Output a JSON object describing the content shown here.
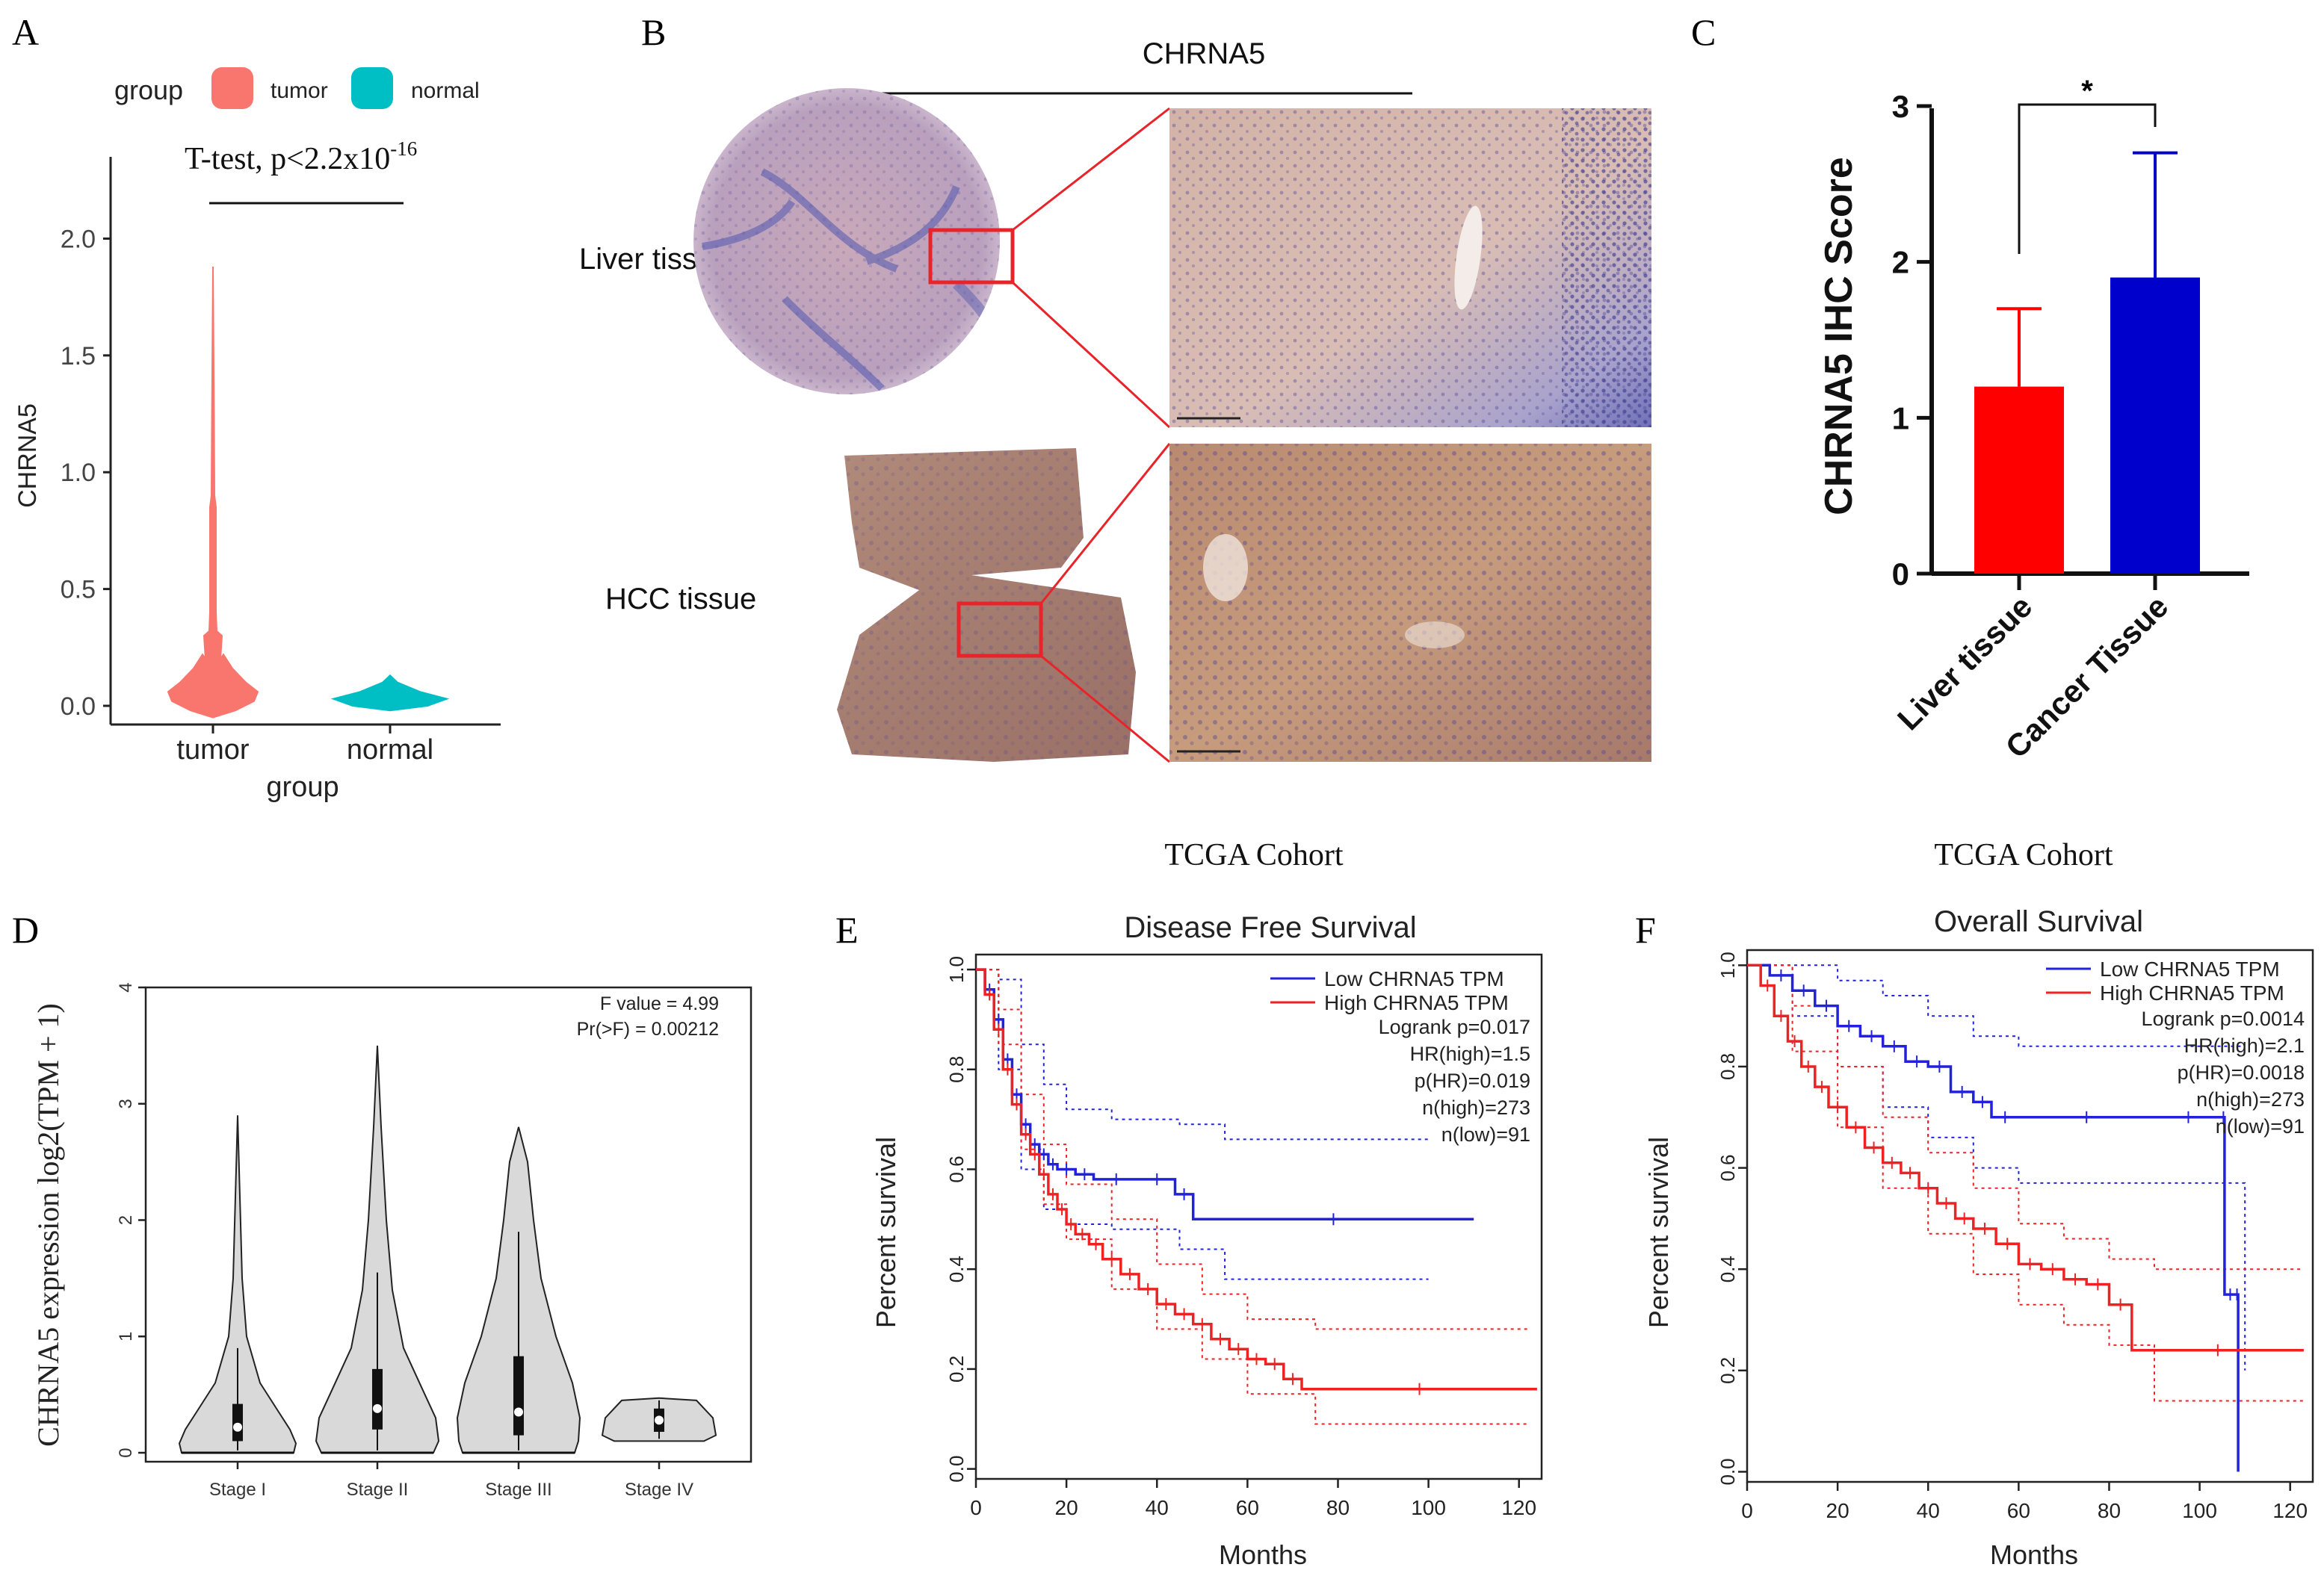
{
  "panel_letters": {
    "a": "A",
    "b": "B",
    "c": "C",
    "d": "D",
    "e": "E",
    "f": "F"
  },
  "colors": {
    "tumor": "#f8766d",
    "normal": "#00bfc4",
    "liver_bar": "#ff0000",
    "cancer_bar": "#0000cc",
    "low": "#2222dd",
    "high": "#ee2222",
    "violin_fill": "#d9d9d9"
  },
  "panel_a": {
    "legend": {
      "title": "group",
      "items": [
        "tumor",
        "normal"
      ]
    },
    "test_text": "T-test, p<2.2x10",
    "test_exp": "-16",
    "ylabel": "CHRNA5",
    "xlabel": "group",
    "yticks": [
      "0.0",
      "0.5",
      "1.0",
      "1.5",
      "2.0"
    ],
    "xticks": [
      "tumor",
      "normal"
    ],
    "chart_data": {
      "type": "violin",
      "categories": [
        "tumor",
        "normal"
      ],
      "max": [
        1.88,
        0.13
      ],
      "mode": [
        0.05,
        0.03
      ],
      "ylim": [
        -0.08,
        2.35
      ]
    }
  },
  "panel_b": {
    "title": "CHRNA5",
    "rows": [
      "Liver tissue",
      "HCC tissue"
    ]
  },
  "panel_c": {
    "ylabel": "CHRNA5 IHC Score",
    "yticks": [
      "0",
      "1",
      "2",
      "3"
    ],
    "significance": "*",
    "chart_data": {
      "type": "bar",
      "categories": [
        "Liver tissue",
        "Cancer Tissue"
      ],
      "values": [
        1.2,
        1.9
      ],
      "errors": [
        0.5,
        0.8
      ],
      "ylim": [
        0,
        3
      ]
    }
  },
  "panel_d": {
    "ylabel": "CHRNA5 expression log2(TPM + 1)",
    "stats": [
      "F value = 4.99",
      "Pr(>F) = 0.00212"
    ],
    "yticks": [
      "0",
      "1",
      "2",
      "3",
      "4"
    ],
    "chart_data": {
      "type": "violin",
      "categories": [
        "Stage I",
        "Stage II",
        "Stage III",
        "Stage IV"
      ],
      "max": [
        2.9,
        3.5,
        2.8,
        0.47
      ],
      "min": [
        0,
        0,
        0,
        0.1
      ],
      "q1": [
        0.1,
        0.2,
        0.15,
        0.18
      ],
      "median": [
        0.22,
        0.38,
        0.35,
        0.28
      ],
      "q3": [
        0.42,
        0.72,
        0.83,
        0.38
      ],
      "ylim": [
        0,
        4
      ]
    }
  },
  "panel_e": {
    "cohort": "TCGA Cohort",
    "title": "Disease Free Survival",
    "ylabel": "Percent survival",
    "xlabel": "Months",
    "legend": [
      "Low CHRNA5 TPM",
      "High CHRNA5 TPM"
    ],
    "stats": [
      "Logrank p=0.017",
      "HR(high)=1.5",
      "p(HR)=0.019",
      "n(high)=273",
      "n(low)=91"
    ],
    "xticks": [
      "0",
      "20",
      "40",
      "60",
      "80",
      "100",
      "120"
    ],
    "yticks": [
      "0.0",
      "0.2",
      "0.4",
      "0.6",
      "0.8",
      "1.0"
    ],
    "chart_data": {
      "type": "line",
      "xlim": [
        0,
        125
      ],
      "ylim": [
        -0.02,
        1.03
      ],
      "series": [
        {
          "name": "Low CHRNA5 TPM",
          "x": [
            0,
            2,
            4,
            6,
            8,
            10,
            12,
            14,
            16,
            18,
            22,
            26,
            36,
            44,
            48,
            110
          ],
          "y": [
            1.0,
            0.96,
            0.9,
            0.82,
            0.75,
            0.69,
            0.65,
            0.63,
            0.61,
            0.6,
            0.59,
            0.58,
            0.58,
            0.55,
            0.5,
            0.5
          ]
        },
        {
          "name": "High CHRNA5 TPM",
          "x": [
            0,
            2,
            4,
            6,
            8,
            10,
            12,
            14,
            16,
            18,
            20,
            22,
            25,
            28,
            32,
            36,
            40,
            44,
            48,
            52,
            56,
            60,
            64,
            68,
            72,
            124
          ],
          "y": [
            1.0,
            0.95,
            0.88,
            0.8,
            0.73,
            0.67,
            0.63,
            0.59,
            0.55,
            0.52,
            0.49,
            0.47,
            0.45,
            0.42,
            0.39,
            0.36,
            0.33,
            0.31,
            0.29,
            0.26,
            0.24,
            0.22,
            0.21,
            0.18,
            0.16,
            0.16
          ]
        },
        {
          "name": "Low CI upper",
          "x": [
            0,
            5,
            10,
            15,
            20,
            30,
            45,
            55,
            100
          ],
          "y": [
            1.0,
            0.98,
            0.85,
            0.77,
            0.72,
            0.7,
            0.69,
            0.66,
            0.66
          ]
        },
        {
          "name": "Low CI lower",
          "x": [
            0,
            5,
            10,
            15,
            20,
            30,
            45,
            55,
            100
          ],
          "y": [
            1.0,
            0.8,
            0.6,
            0.52,
            0.49,
            0.48,
            0.44,
            0.38,
            0.38
          ]
        },
        {
          "name": "High CI upper",
          "x": [
            0,
            5,
            10,
            15,
            20,
            30,
            40,
            50,
            60,
            75,
            122
          ],
          "y": [
            1.0,
            0.92,
            0.75,
            0.65,
            0.57,
            0.5,
            0.41,
            0.35,
            0.3,
            0.28,
            0.28
          ]
        },
        {
          "name": "High CI lower",
          "x": [
            0,
            5,
            10,
            15,
            20,
            30,
            40,
            50,
            60,
            75,
            122
          ],
          "y": [
            1.0,
            0.85,
            0.64,
            0.53,
            0.46,
            0.36,
            0.28,
            0.22,
            0.15,
            0.09,
            0.09
          ]
        }
      ]
    }
  },
  "panel_f": {
    "cohort": "TCGA Cohort",
    "title": "Overall Survival",
    "ylabel": "Percent survival",
    "xlabel": "Months",
    "legend": [
      "Low CHRNA5 TPM",
      "High CHRNA5 TPM"
    ],
    "stats": [
      "Logrank p=0.0014",
      "HR(high)=2.1",
      "p(HR)=0.0018",
      "n(high)=273",
      "n(low)=91"
    ],
    "xticks": [
      "0",
      "20",
      "40",
      "60",
      "80",
      "100",
      "120"
    ],
    "yticks": [
      "0.0",
      "0.2",
      "0.4",
      "0.6",
      "0.8",
      "1.0"
    ],
    "chart_data": {
      "type": "line",
      "xlim": [
        0,
        125
      ],
      "ylim": [
        -0.02,
        1.03
      ],
      "series": [
        {
          "name": "Low CHRNA5 TPM",
          "x": [
            0,
            5,
            10,
            15,
            20,
            25,
            30,
            35,
            40,
            45,
            50,
            54,
            60,
            90,
            105,
            105.5,
            108,
            108.5
          ],
          "y": [
            1.0,
            0.98,
            0.95,
            0.92,
            0.88,
            0.86,
            0.84,
            0.81,
            0.8,
            0.75,
            0.73,
            0.7,
            0.7,
            0.7,
            0.7,
            0.35,
            0.35,
            0.0
          ]
        },
        {
          "name": "High CHRNA5 TPM",
          "x": [
            0,
            3,
            6,
            9,
            12,
            15,
            18,
            22,
            26,
            30,
            34,
            38,
            42,
            46,
            50,
            55,
            60,
            65,
            70,
            75,
            80,
            85,
            123
          ],
          "y": [
            1.0,
            0.96,
            0.9,
            0.85,
            0.8,
            0.76,
            0.72,
            0.68,
            0.64,
            0.61,
            0.59,
            0.56,
            0.53,
            0.5,
            0.48,
            0.45,
            0.41,
            0.4,
            0.38,
            0.37,
            0.33,
            0.24,
            0.24
          ]
        },
        {
          "name": "Low CI upper",
          "x": [
            0,
            10,
            20,
            30,
            40,
            50,
            60,
            100,
            110
          ],
          "y": [
            1.0,
            1.0,
            0.97,
            0.94,
            0.9,
            0.86,
            0.84,
            0.84,
            0.84
          ]
        },
        {
          "name": "Low CI lower",
          "x": [
            0,
            10,
            20,
            30,
            40,
            50,
            60,
            100,
            110
          ],
          "y": [
            1.0,
            0.9,
            0.8,
            0.72,
            0.66,
            0.6,
            0.57,
            0.57,
            0.2
          ]
        },
        {
          "name": "High CI upper",
          "x": [
            0,
            10,
            20,
            30,
            40,
            50,
            60,
            70,
            80,
            90,
            123
          ],
          "y": [
            1.0,
            0.92,
            0.8,
            0.7,
            0.63,
            0.56,
            0.49,
            0.46,
            0.42,
            0.4,
            0.4
          ]
        },
        {
          "name": "High CI lower",
          "x": [
            0,
            10,
            20,
            30,
            40,
            50,
            60,
            70,
            80,
            90,
            123
          ],
          "y": [
            1.0,
            0.83,
            0.68,
            0.56,
            0.47,
            0.39,
            0.33,
            0.29,
            0.25,
            0.14,
            0.14
          ]
        }
      ]
    }
  }
}
